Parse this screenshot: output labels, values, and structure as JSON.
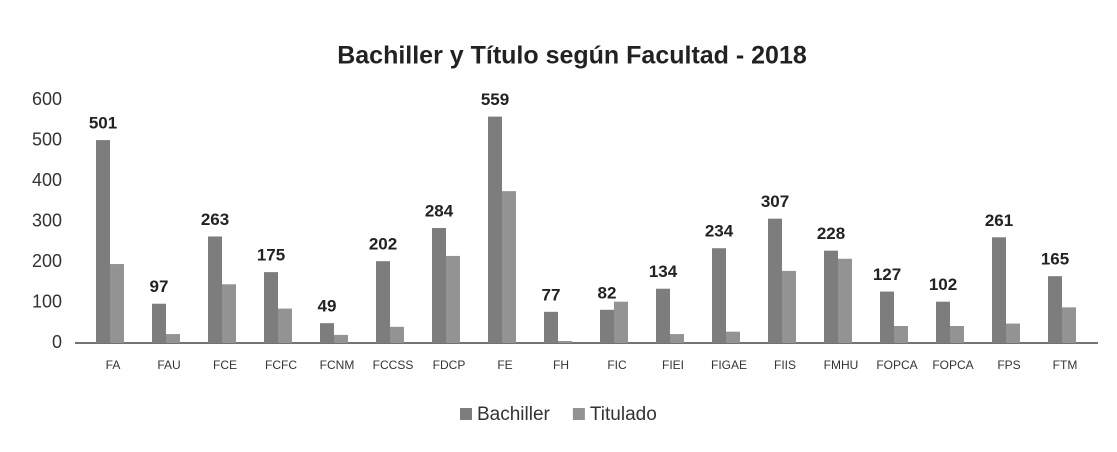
{
  "chart_data": {
    "type": "bar",
    "title": "Bachiller y Título según Facultad - 2018",
    "categories": [
      "FA",
      "FAU",
      "FCE",
      "FCFC",
      "FCNM",
      "FCCSS",
      "FDCP",
      "FE",
      "FH",
      "FIC",
      "FIEI",
      "FIGAE",
      "FIIS",
      "FMHU",
      "FOPCA",
      "FOPCA",
      "FPS",
      "FTM"
    ],
    "series": [
      {
        "name": "Bachiller",
        "color": "#7d7d7d",
        "values": [
          501,
          97,
          263,
          175,
          49,
          202,
          284,
          559,
          77,
          82,
          134,
          234,
          307,
          228,
          127,
          102,
          261,
          165
        ],
        "data_labels": true
      },
      {
        "name": "Titulado",
        "color": "#939393",
        "values": [
          195,
          22,
          145,
          85,
          20,
          40,
          215,
          375,
          5,
          102,
          22,
          28,
          178,
          208,
          42,
          42,
          48,
          88
        ]
      }
    ],
    "ylim": [
      0,
      600
    ],
    "yticks": [
      0,
      100,
      200,
      300,
      400,
      500,
      600
    ],
    "grid": false,
    "legend": "bottom"
  }
}
